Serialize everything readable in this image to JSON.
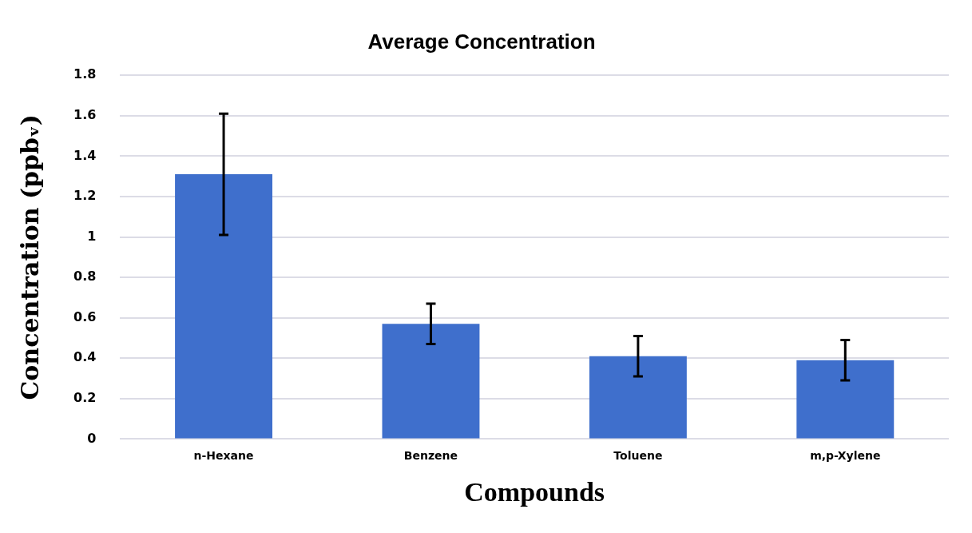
{
  "chart_data": {
    "type": "bar",
    "title": "Average Concentration",
    "xlabel": "Compounds",
    "ylabel": "Concentration (ppbᵥ)",
    "categories": [
      "n-Hexane",
      "Benzene",
      "Toluene",
      "m,p-Xylene"
    ],
    "values": [
      1.31,
      0.57,
      0.41,
      0.39
    ],
    "errors": [
      0.3,
      0.1,
      0.1,
      0.1
    ],
    "color": "#3f6fcc",
    "ylim": [
      0,
      1.8
    ],
    "yticks": [
      0,
      0.2,
      0.4,
      0.6,
      0.8,
      1,
      1.2,
      1.4,
      1.6,
      1.8
    ],
    "grid": "y"
  }
}
